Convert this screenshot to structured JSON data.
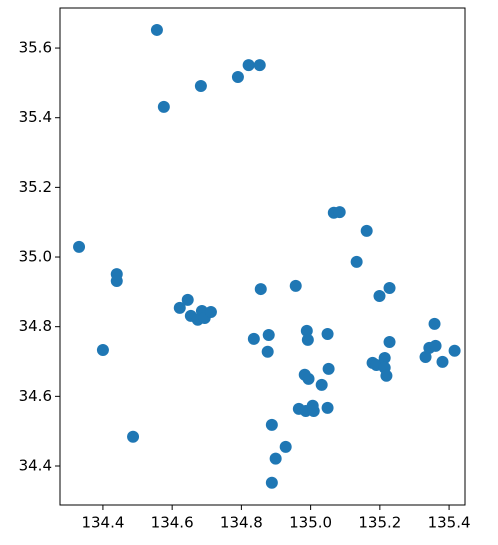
{
  "chart_data": {
    "type": "scatter",
    "color": "#1f77b4",
    "x": [
      134.556,
      134.576,
      134.683,
      134.79,
      134.821,
      134.853,
      134.331,
      134.44,
      134.44,
      134.4,
      134.487,
      134.622,
      134.645,
      134.654,
      134.674,
      134.686,
      134.694,
      134.712,
      134.856,
      134.836,
      134.879,
      134.876,
      134.957,
      135.067,
      135.084,
      135.162,
      135.133,
      135.199,
      135.228,
      134.989,
      134.992,
      135.049,
      135.228,
      135.052,
      135.032,
      134.983,
      134.994,
      135.179,
      135.19,
      135.214,
      135.214,
      135.219,
      135.332,
      135.343,
      135.361,
      135.358,
      135.381,
      135.416,
      134.966,
      134.986,
      135.006,
      135.009,
      135.049,
      134.888,
      134.928,
      134.899,
      134.888
    ],
    "values": [
      35.652,
      35.431,
      35.491,
      35.517,
      35.551,
      35.551,
      35.029,
      34.951,
      34.931,
      34.733,
      34.484,
      34.854,
      34.877,
      34.831,
      34.82,
      34.845,
      34.825,
      34.842,
      34.908,
      34.765,
      34.776,
      34.728,
      34.917,
      35.127,
      35.129,
      35.075,
      34.986,
      34.888,
      34.911,
      34.788,
      34.762,
      34.779,
      34.756,
      34.679,
      34.633,
      34.662,
      34.65,
      34.696,
      34.69,
      34.71,
      34.682,
      34.659,
      34.713,
      34.739,
      34.745,
      34.808,
      34.699,
      34.731,
      34.564,
      34.558,
      34.573,
      34.558,
      34.567,
      34.518,
      34.455,
      34.421,
      34.352
    ],
    "xlim": [
      134.276,
      135.446
    ],
    "xticks": [
      134.4,
      134.6,
      134.8,
      {
        "value": 135,
        "label": "135.0"
      },
      135.2,
      135.4
    ],
    "ylim": [
      34.288,
      35.715
    ],
    "yticks": [
      34.4,
      34.6,
      34.8,
      {
        "value": 35,
        "label": "35.0"
      },
      35.2,
      35.4,
      35.6
    ]
  }
}
